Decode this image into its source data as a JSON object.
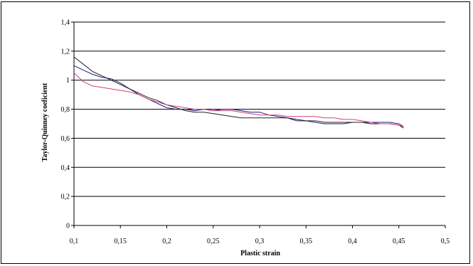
{
  "chart_data": {
    "type": "line",
    "title": "",
    "xlabel": "Plastic strain",
    "ylabel": "Taylor-Quinney coeficient",
    "xlim": [
      0.1,
      0.5
    ],
    "ylim": [
      0,
      1.4
    ],
    "grid": true,
    "legend": "none",
    "x_ticks": [
      "0,1",
      "0,15",
      "0,2",
      "0,25",
      "0,3",
      "0,35",
      "0,4",
      "0,45",
      "0,5"
    ],
    "y_ticks": [
      "0",
      "0,2",
      "0,4",
      "0,6",
      "0,8",
      "1",
      "1,2",
      "1,4"
    ],
    "series": [
      {
        "color": "#1a1a7a",
        "points": [
          [
            0.1,
            1.1
          ],
          [
            0.11,
            1.07
          ],
          [
            0.12,
            1.04
          ],
          [
            0.13,
            1.02
          ],
          [
            0.14,
            1.01
          ],
          [
            0.15,
            0.98
          ],
          [
            0.16,
            0.94
          ],
          [
            0.17,
            0.9
          ],
          [
            0.18,
            0.87
          ],
          [
            0.19,
            0.84
          ],
          [
            0.2,
            0.81
          ],
          [
            0.21,
            0.8
          ],
          [
            0.22,
            0.8
          ],
          [
            0.23,
            0.79
          ],
          [
            0.24,
            0.8
          ],
          [
            0.25,
            0.79
          ],
          [
            0.26,
            0.8
          ],
          [
            0.27,
            0.8
          ],
          [
            0.28,
            0.79
          ],
          [
            0.29,
            0.78
          ],
          [
            0.3,
            0.78
          ],
          [
            0.31,
            0.76
          ],
          [
            0.32,
            0.75
          ],
          [
            0.33,
            0.74
          ],
          [
            0.34,
            0.72
          ],
          [
            0.35,
            0.72
          ],
          [
            0.36,
            0.71
          ],
          [
            0.37,
            0.7
          ],
          [
            0.38,
            0.7
          ],
          [
            0.39,
            0.7
          ],
          [
            0.4,
            0.71
          ],
          [
            0.41,
            0.71
          ],
          [
            0.42,
            0.71
          ],
          [
            0.43,
            0.71
          ],
          [
            0.44,
            0.71
          ],
          [
            0.45,
            0.7
          ],
          [
            0.455,
            0.68
          ]
        ]
      },
      {
        "color": "#222222",
        "points": [
          [
            0.1,
            1.16
          ],
          [
            0.11,
            1.11
          ],
          [
            0.12,
            1.06
          ],
          [
            0.13,
            1.03
          ],
          [
            0.14,
            1.0
          ],
          [
            0.15,
            0.97
          ],
          [
            0.16,
            0.94
          ],
          [
            0.17,
            0.91
          ],
          [
            0.18,
            0.88
          ],
          [
            0.19,
            0.86
          ],
          [
            0.2,
            0.83
          ],
          [
            0.21,
            0.81
          ],
          [
            0.22,
            0.79
          ],
          [
            0.23,
            0.78
          ],
          [
            0.24,
            0.78
          ],
          [
            0.25,
            0.77
          ],
          [
            0.26,
            0.76
          ],
          [
            0.27,
            0.75
          ],
          [
            0.28,
            0.74
          ],
          [
            0.29,
            0.74
          ],
          [
            0.3,
            0.74
          ],
          [
            0.31,
            0.74
          ],
          [
            0.32,
            0.74
          ],
          [
            0.33,
            0.74
          ],
          [
            0.34,
            0.73
          ],
          [
            0.35,
            0.72
          ],
          [
            0.36,
            0.72
          ],
          [
            0.37,
            0.71
          ],
          [
            0.38,
            0.71
          ],
          [
            0.39,
            0.71
          ],
          [
            0.4,
            0.71
          ],
          [
            0.41,
            0.71
          ],
          [
            0.42,
            0.7
          ],
          [
            0.43,
            0.7
          ],
          [
            0.44,
            0.7
          ],
          [
            0.45,
            0.69
          ],
          [
            0.455,
            0.67
          ]
        ]
      },
      {
        "color": "#d0407a",
        "points": [
          [
            0.1,
            1.05
          ],
          [
            0.11,
            0.99
          ],
          [
            0.12,
            0.96
          ],
          [
            0.13,
            0.95
          ],
          [
            0.14,
            0.94
          ],
          [
            0.15,
            0.93
          ],
          [
            0.16,
            0.92
          ],
          [
            0.17,
            0.9
          ],
          [
            0.18,
            0.87
          ],
          [
            0.19,
            0.85
          ],
          [
            0.2,
            0.83
          ],
          [
            0.21,
            0.82
          ],
          [
            0.22,
            0.81
          ],
          [
            0.23,
            0.8
          ],
          [
            0.24,
            0.8
          ],
          [
            0.25,
            0.79
          ],
          [
            0.26,
            0.79
          ],
          [
            0.27,
            0.79
          ],
          [
            0.28,
            0.78
          ],
          [
            0.29,
            0.77
          ],
          [
            0.3,
            0.76
          ],
          [
            0.31,
            0.76
          ],
          [
            0.32,
            0.76
          ],
          [
            0.33,
            0.75
          ],
          [
            0.34,
            0.75
          ],
          [
            0.35,
            0.75
          ],
          [
            0.36,
            0.75
          ],
          [
            0.37,
            0.74
          ],
          [
            0.38,
            0.74
          ],
          [
            0.39,
            0.73
          ],
          [
            0.4,
            0.73
          ],
          [
            0.41,
            0.72
          ],
          [
            0.42,
            0.71
          ],
          [
            0.43,
            0.7
          ],
          [
            0.44,
            0.7
          ],
          [
            0.45,
            0.69
          ],
          [
            0.455,
            0.68
          ]
        ]
      }
    ]
  }
}
